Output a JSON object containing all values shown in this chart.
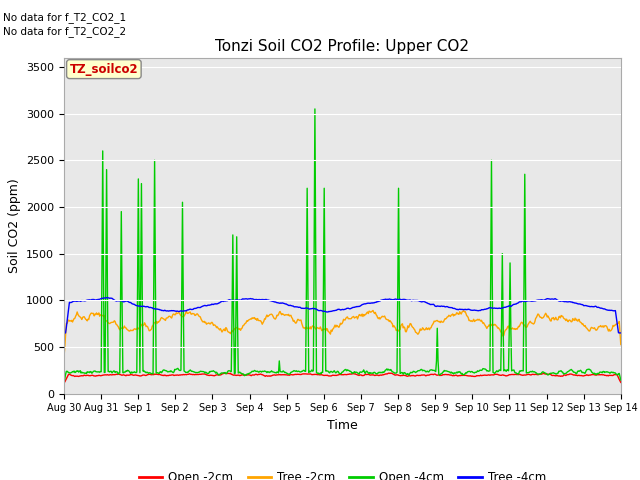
{
  "title": "Tonzi Soil CO2 Profile: Upper CO2",
  "ylabel": "Soil CO2 (ppm)",
  "xlabel": "Time",
  "no_data_text": [
    "No data for f_T2_CO2_1",
    "No data for f_T2_CO2_2"
  ],
  "legend_label": "TZ_soilco2",
  "ylim": [
    0,
    3600
  ],
  "yticks": [
    0,
    500,
    1000,
    1500,
    2000,
    2500,
    3000,
    3500
  ],
  "series_colors": {
    "open_2cm": "#ff0000",
    "tree_2cm": "#ffa500",
    "open_4cm": "#00cc00",
    "tree_4cm": "#0000ff"
  },
  "legend_entries": [
    {
      "label": "Open -2cm",
      "color": "#ff0000"
    },
    {
      "label": "Tree -2cm",
      "color": "#ffa500"
    },
    {
      "label": "Open -4cm",
      "color": "#00cc00"
    },
    {
      "label": "Tree -4cm",
      "color": "#0000ff"
    }
  ],
  "x_tick_labels": [
    "Aug 30",
    "Aug 31",
    "Sep 1",
    "Sep 2",
    "Sep 3",
    "Sep 4",
    "Sep 5",
    "Sep 6",
    "Sep 7",
    "Sep 8",
    "Sep 9",
    "Sep 10",
    "Sep 11",
    "Sep 12",
    "Sep 13",
    "Sep 14"
  ],
  "background_color": "#e8e8e8",
  "fig_background": "#ffffff",
  "grid_color": "#ffffff",
  "linewidth": 1.0,
  "title_fontsize": 11,
  "tick_fontsize": 7,
  "label_fontsize": 9
}
